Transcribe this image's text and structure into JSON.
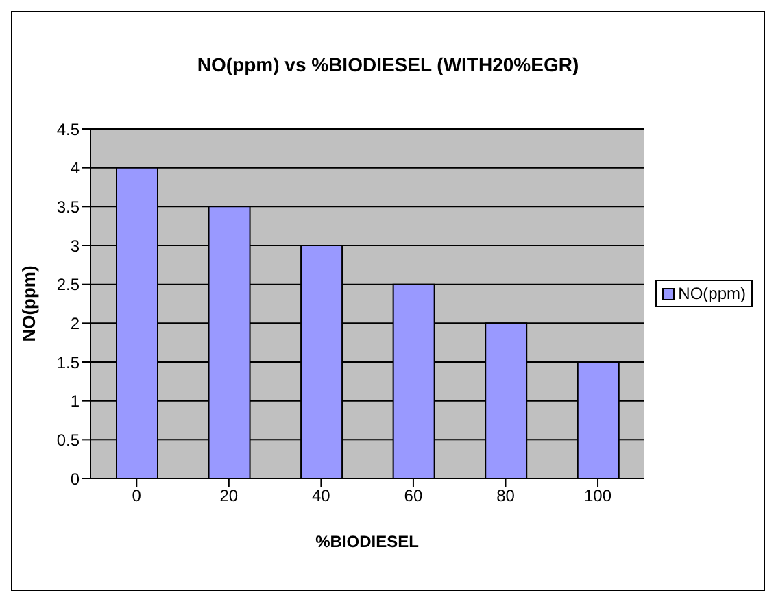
{
  "chart_data": {
    "type": "bar",
    "title": "NO(ppm) vs %BIODIESEL (WITH20%EGR)",
    "xlabel": "%BIODIESEL",
    "ylabel": "NO(ppm)",
    "categories": [
      "0",
      "20",
      "40",
      "60",
      "80",
      "100"
    ],
    "series": [
      {
        "name": "NO(ppm)",
        "color": "#9999ff",
        "values": [
          4,
          3.5,
          3,
          2.5,
          2,
          1.5
        ]
      }
    ],
    "ylim": [
      0,
      4.5
    ],
    "yticks": [
      0,
      0.5,
      1,
      1.5,
      2,
      2.5,
      3,
      3.5,
      4,
      4.5
    ],
    "grid": "y",
    "legend": "right"
  }
}
